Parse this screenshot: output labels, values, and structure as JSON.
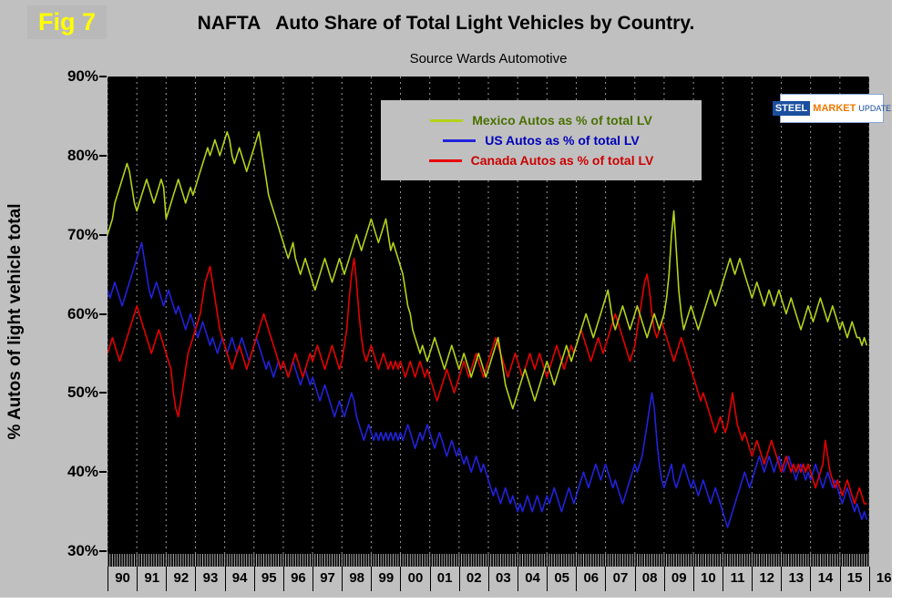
{
  "figure_label": "Fig 7",
  "logo": {
    "steel": "STEEL",
    "market": "MARKET",
    "update": "UPDATE"
  },
  "colors": {
    "panel_bg": "#c0c0c0",
    "plot_bg": "#000000",
    "grid": "#999999",
    "tick_comb": "#b0b0b0",
    "fig_label": "#ffff00"
  },
  "chart_data": {
    "type": "line",
    "title": "NAFTA   Auto Share of Total Light Vehicles by Country.",
    "subtitle": "Source Wards Automotive",
    "ylabel": "% Autos of light vehicle total",
    "xlabel": "",
    "ylim": [
      30,
      90
    ],
    "grid": "vertical-dashed",
    "legend_position": "top-center",
    "x_start_year": 1990,
    "points_per_year": 12,
    "x_tick_labels": [
      "90",
      "91",
      "92",
      "93",
      "94",
      "95",
      "96",
      "97",
      "98",
      "99",
      "00",
      "01",
      "02",
      "03",
      "04",
      "05",
      "06",
      "07",
      "08",
      "09",
      "10",
      "11",
      "12",
      "13",
      "14",
      "15",
      "16"
    ],
    "y_tick_labels": [
      "90%",
      "80%",
      "70%",
      "60%",
      "50%",
      "40%",
      "30%"
    ],
    "series": [
      {
        "name": "Mexico Autos as % of total LV",
        "color": "#b4d219",
        "label_color": "#4a7000",
        "values": [
          70,
          71,
          72,
          74,
          75,
          76,
          77,
          78,
          79,
          78,
          76,
          74,
          73,
          74,
          75,
          76,
          77,
          76,
          75,
          74,
          75,
          76,
          77,
          76,
          72,
          73,
          74,
          75,
          76,
          77,
          76,
          75,
          74,
          75,
          76,
          75,
          76,
          77,
          78,
          79,
          80,
          81,
          80,
          81,
          82,
          81,
          80,
          81,
          82,
          83,
          82,
          80,
          79,
          80,
          81,
          80,
          79,
          78,
          79,
          80,
          81,
          82,
          83,
          81,
          79,
          77,
          75,
          74,
          73,
          72,
          71,
          70,
          69,
          68,
          67,
          68,
          69,
          67,
          66,
          65,
          66,
          67,
          66,
          65,
          64,
          63,
          64,
          65,
          66,
          67,
          66,
          65,
          64,
          65,
          66,
          67,
          66,
          65,
          66,
          67,
          68,
          69,
          70,
          69,
          68,
          69,
          70,
          71,
          72,
          71,
          70,
          69,
          70,
          71,
          72,
          70,
          68,
          69,
          68,
          67,
          66,
          65,
          63,
          61,
          60,
          58,
          57,
          56,
          55,
          56,
          55,
          54,
          55,
          56,
          57,
          56,
          55,
          54,
          53,
          54,
          55,
          56,
          55,
          54,
          53,
          54,
          55,
          54,
          53,
          52,
          53,
          54,
          55,
          54,
          53,
          52,
          53,
          54,
          55,
          56,
          57,
          55,
          53,
          51,
          50,
          49,
          48,
          49,
          50,
          51,
          52,
          53,
          52,
          51,
          50,
          49,
          50,
          51,
          52,
          53,
          54,
          53,
          52,
          51,
          52,
          53,
          54,
          55,
          56,
          55,
          54,
          55,
          56,
          57,
          58,
          59,
          60,
          59,
          58,
          57,
          58,
          59,
          60,
          61,
          62,
          63,
          61,
          59,
          58,
          59,
          60,
          61,
          60,
          59,
          58,
          59,
          60,
          61,
          60,
          59,
          58,
          57,
          58,
          59,
          60,
          59,
          58,
          59,
          60,
          62,
          65,
          70,
          73,
          68,
          63,
          60,
          58,
          59,
          60,
          61,
          60,
          59,
          58,
          59,
          60,
          61,
          62,
          63,
          62,
          61,
          62,
          63,
          64,
          65,
          66,
          67,
          66,
          65,
          66,
          67,
          66,
          65,
          64,
          63,
          62,
          63,
          64,
          63,
          62,
          61,
          62,
          63,
          62,
          61,
          62,
          63,
          62,
          61,
          60,
          61,
          62,
          61,
          60,
          59,
          58,
          59,
          60,
          61,
          60,
          59,
          60,
          61,
          62,
          61,
          60,
          59,
          60,
          61,
          60,
          59,
          58,
          59,
          58,
          57,
          58,
          59,
          58,
          57,
          57,
          56,
          57,
          56
        ]
      },
      {
        "name": "US Autos as % of total LV",
        "color": "#2222dd",
        "label_color": "#0000bb",
        "values": [
          63,
          62,
          63,
          64,
          63,
          62,
          61,
          62,
          63,
          64,
          65,
          66,
          67,
          68,
          69,
          67,
          65,
          63,
          62,
          63,
          64,
          63,
          62,
          61,
          62,
          63,
          62,
          61,
          60,
          61,
          60,
          59,
          58,
          59,
          60,
          59,
          58,
          57,
          58,
          59,
          58,
          57,
          56,
          57,
          56,
          55,
          56,
          57,
          56,
          55,
          56,
          57,
          56,
          55,
          56,
          57,
          56,
          55,
          54,
          55,
          56,
          57,
          56,
          55,
          54,
          53,
          54,
          53,
          52,
          53,
          54,
          53,
          54,
          53,
          52,
          53,
          54,
          53,
          52,
          51,
          52,
          53,
          52,
          51,
          52,
          51,
          50,
          49,
          50,
          51,
          50,
          49,
          48,
          47,
          48,
          49,
          48,
          47,
          48,
          49,
          50,
          49,
          47,
          46,
          45,
          44,
          45,
          46,
          45,
          44,
          45,
          44,
          45,
          44,
          45,
          44,
          45,
          44,
          45,
          44,
          45,
          44,
          45,
          46,
          45,
          44,
          43,
          44,
          45,
          44,
          45,
          46,
          45,
          44,
          43,
          44,
          45,
          44,
          43,
          42,
          43,
          44,
          43,
          42,
          43,
          42,
          41,
          42,
          41,
          40,
          41,
          42,
          41,
          40,
          41,
          40,
          39,
          38,
          37,
          38,
          37,
          36,
          37,
          38,
          37,
          36,
          37,
          36,
          35,
          36,
          35,
          36,
          37,
          36,
          35,
          36,
          37,
          36,
          35,
          36,
          37,
          36,
          37,
          38,
          37,
          36,
          35,
          36,
          37,
          38,
          37,
          36,
          37,
          38,
          39,
          40,
          39,
          38,
          39,
          40,
          41,
          40,
          39,
          40,
          41,
          40,
          39,
          38,
          39,
          38,
          37,
          36,
          37,
          38,
          39,
          40,
          41,
          40,
          41,
          42,
          44,
          46,
          48,
          50,
          48,
          44,
          41,
          39,
          38,
          39,
          40,
          41,
          39,
          38,
          39,
          40,
          41,
          40,
          39,
          38,
          39,
          38,
          37,
          38,
          39,
          38,
          37,
          36,
          37,
          38,
          37,
          36,
          35,
          34,
          33,
          34,
          35,
          36,
          37,
          38,
          39,
          40,
          39,
          38,
          39,
          40,
          41,
          42,
          41,
          40,
          41,
          42,
          41,
          40,
          41,
          42,
          41,
          40,
          41,
          42,
          41,
          40,
          39,
          40,
          41,
          40,
          39,
          40,
          39,
          40,
          41,
          40,
          39,
          38,
          39,
          40,
          39,
          38,
          39,
          38,
          37,
          36,
          37,
          38,
          37,
          36,
          35,
          36,
          35,
          34,
          35,
          34
        ]
      },
      {
        "name": "Canada Autos as % of total LV",
        "color": "#e80000",
        "label_color": "#cc0000",
        "values": [
          55,
          56,
          57,
          56,
          55,
          54,
          55,
          56,
          57,
          58,
          59,
          60,
          61,
          60,
          59,
          58,
          57,
          56,
          55,
          56,
          57,
          58,
          57,
          56,
          55,
          54,
          53,
          50,
          48,
          47,
          49,
          51,
          53,
          55,
          56,
          57,
          58,
          59,
          60,
          62,
          64,
          65,
          66,
          64,
          62,
          60,
          58,
          57,
          56,
          55,
          54,
          53,
          54,
          55,
          56,
          55,
          54,
          53,
          54,
          55,
          56,
          57,
          58,
          59,
          60,
          59,
          58,
          57,
          56,
          55,
          54,
          53,
          54,
          53,
          52,
          53,
          54,
          55,
          54,
          53,
          52,
          53,
          54,
          55,
          54,
          55,
          56,
          55,
          54,
          53,
          54,
          55,
          56,
          55,
          54,
          53,
          54,
          56,
          58,
          62,
          65,
          67,
          64,
          60,
          57,
          55,
          54,
          55,
          56,
          55,
          54,
          53,
          54,
          55,
          54,
          53,
          54,
          53,
          54,
          53,
          54,
          53,
          52,
          53,
          54,
          53,
          52,
          53,
          54,
          53,
          52,
          53,
          52,
          51,
          50,
          49,
          50,
          51,
          52,
          53,
          52,
          51,
          50,
          51,
          52,
          53,
          54,
          53,
          52,
          53,
          54,
          55,
          54,
          53,
          52,
          53,
          54,
          55,
          56,
          57,
          56,
          55,
          54,
          53,
          52,
          53,
          54,
          55,
          54,
          53,
          52,
          53,
          54,
          55,
          54,
          53,
          54,
          55,
          54,
          53,
          52,
          53,
          54,
          55,
          56,
          55,
          54,
          53,
          54,
          55,
          56,
          55,
          56,
          57,
          58,
          57,
          56,
          55,
          54,
          55,
          56,
          57,
          56,
          55,
          56,
          57,
          58,
          59,
          60,
          59,
          58,
          57,
          56,
          55,
          54,
          55,
          56,
          58,
          60,
          62,
          64,
          65,
          63,
          60,
          58,
          57,
          58,
          59,
          58,
          57,
          56,
          55,
          54,
          55,
          56,
          57,
          56,
          55,
          54,
          53,
          52,
          51,
          50,
          49,
          50,
          49,
          48,
          47,
          46,
          45,
          46,
          47,
          46,
          45,
          46,
          48,
          50,
          48,
          46,
          45,
          44,
          45,
          44,
          43,
          42,
          43,
          44,
          43,
          42,
          41,
          42,
          43,
          44,
          43,
          42,
          41,
          40,
          41,
          42,
          41,
          40,
          41,
          40,
          41,
          40,
          41,
          40,
          41,
          40,
          39,
          38,
          39,
          40,
          41,
          44,
          42,
          40,
          39,
          38,
          39,
          38,
          37,
          38,
          39,
          38,
          37,
          36,
          37,
          38,
          37,
          36,
          36
        ]
      }
    ]
  }
}
